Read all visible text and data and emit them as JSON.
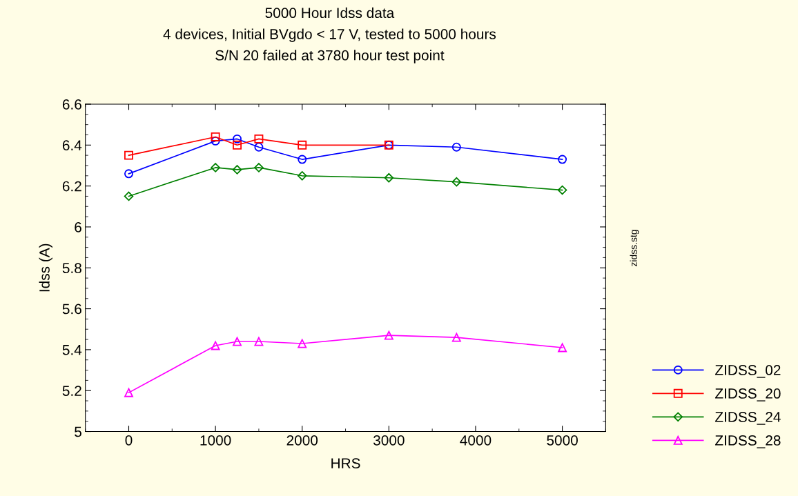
{
  "chart_data": {
    "type": "line",
    "title": "5000 Hour Idss data",
    "subtitle": "4 devices, Initial BVgdo < 17 V, tested to 5000 hours\nS/N 20 failed at 3780 hour test point",
    "xlabel": "HRS",
    "ylabel": "Idss (A)",
    "annotations": [
      "zidss.stg"
    ],
    "x": [
      0,
      1000,
      1250,
      1500,
      2000,
      3000,
      3780,
      5000
    ],
    "series": [
      {
        "name": "ZIDSS_02",
        "color": "#0000ff",
        "marker": "circle",
        "values": [
          6.26,
          6.42,
          6.43,
          6.39,
          6.33,
          6.4,
          6.39,
          6.33
        ]
      },
      {
        "name": "ZIDSS_20",
        "color": "#ff0000",
        "marker": "square",
        "values": [
          6.35,
          6.44,
          6.4,
          6.43,
          6.4,
          6.4,
          null,
          null
        ]
      },
      {
        "name": "ZIDSS_24",
        "color": "#008000",
        "marker": "diamond",
        "values": [
          6.15,
          6.29,
          6.28,
          6.29,
          6.25,
          6.24,
          6.22,
          6.18
        ]
      },
      {
        "name": "ZIDSS_28",
        "color": "#ff00ff",
        "marker": "triangle",
        "values": [
          5.19,
          5.42,
          5.44,
          5.44,
          5.43,
          5.47,
          5.46,
          5.41
        ]
      }
    ],
    "xlim": [
      -500,
      5500
    ],
    "xticks": [
      0,
      1000,
      2000,
      3000,
      4000,
      5000
    ],
    "ylim": [
      5,
      6.6
    ],
    "yticks": [
      5,
      5.2,
      5.4,
      5.6,
      5.8,
      6,
      6.2,
      6.4,
      6.6
    ],
    "grid": false,
    "legend": "bottom right",
    "line_style": "solid"
  }
}
